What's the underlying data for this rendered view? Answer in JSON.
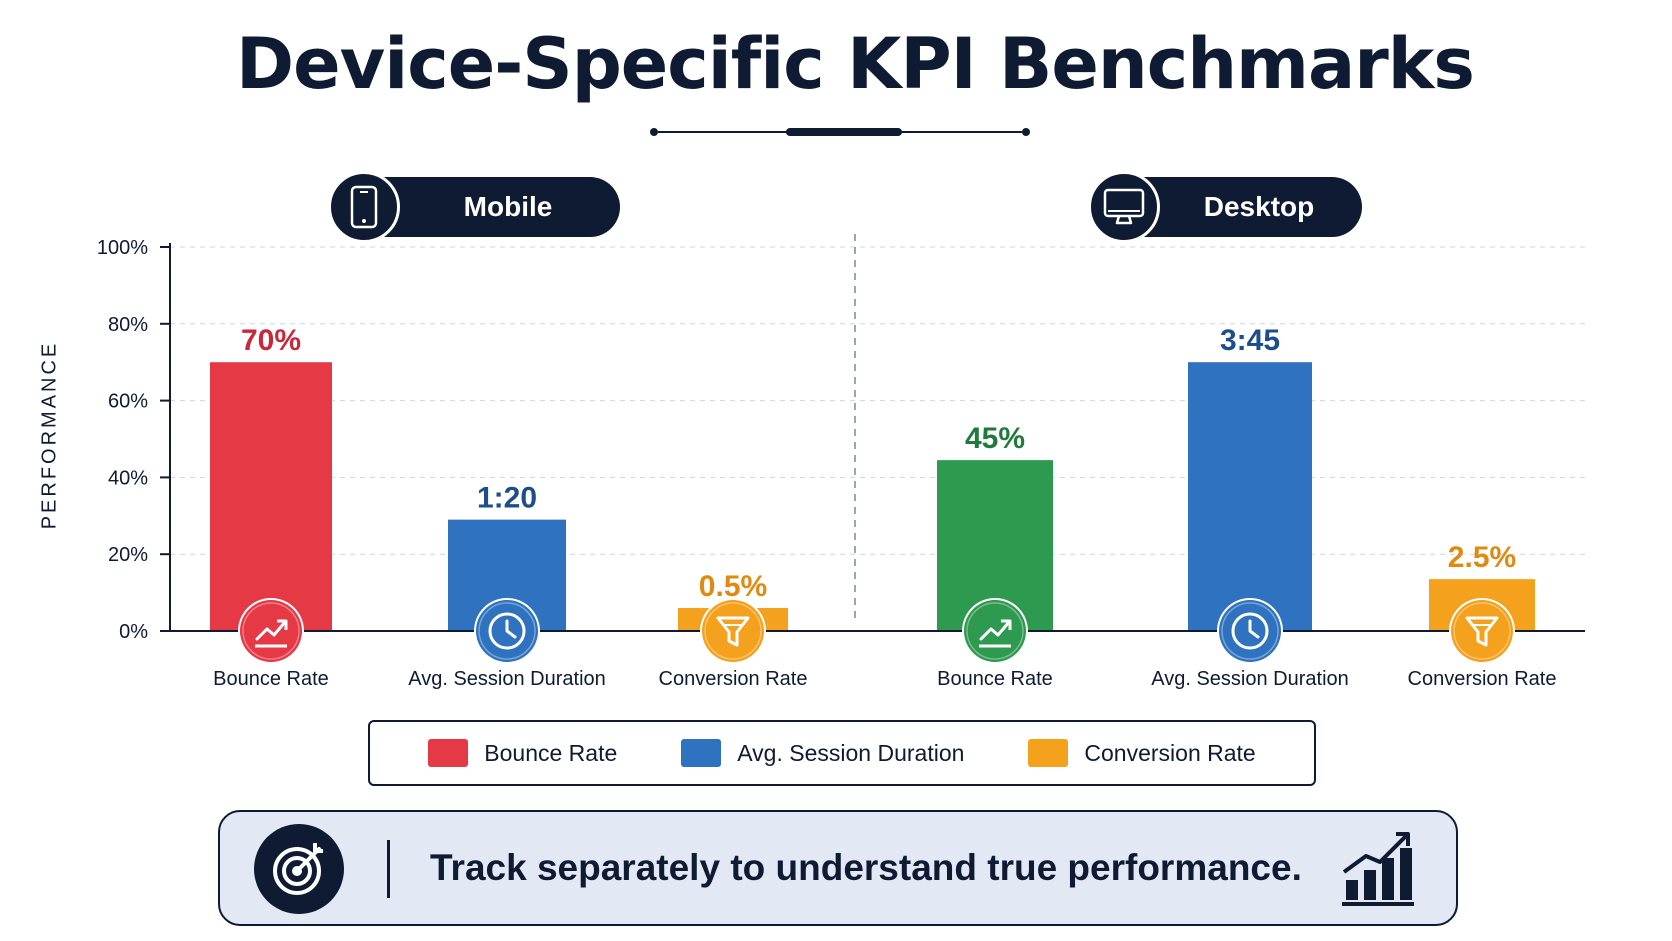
{
  "title": "Device-Specific KPI Benchmarks",
  "groups": {
    "mobile": {
      "label": "Mobile",
      "icon": "smartphone-icon"
    },
    "desktop": {
      "label": "Desktop",
      "icon": "monitor-icon"
    }
  },
  "chart_data": {
    "type": "bar",
    "ylabel": "PERFORMANCE",
    "ylim": [
      0,
      100
    ],
    "yticks": [
      "0%",
      "20%",
      "40%",
      "60%",
      "80%",
      "100%"
    ],
    "grid": true,
    "legend_position": "bottom",
    "panels": [
      {
        "name": "Mobile",
        "bars": [
          {
            "category": "Bounce Rate",
            "value": 70,
            "label": "70%",
            "color": "#e63946",
            "icon": "trend-up-icon"
          },
          {
            "category": "Avg. Session Duration",
            "value": 29,
            "label": "1:20",
            "color": "#2f73c0",
            "icon": "clock-icon"
          },
          {
            "category": "Conversion Rate",
            "value": 6,
            "label": "0.5%",
            "color": "#f4a21d",
            "icon": "funnel-icon"
          }
        ]
      },
      {
        "name": "Desktop",
        "bars": [
          {
            "category": "Bounce Rate",
            "value": 44.5,
            "label": "45%",
            "color": "#2e9a4f",
            "icon": "trend-up-icon"
          },
          {
            "category": "Avg. Session Duration",
            "value": 70,
            "label": "3:45",
            "color": "#2f73c0",
            "icon": "clock-icon"
          },
          {
            "category": "Conversion Rate",
            "value": 13.5,
            "label": "2.5%",
            "color": "#f4a21d",
            "icon": "funnel-icon"
          }
        ]
      }
    ],
    "label_colors": {
      "Mobile.Bounce Rate": "#c9283a",
      "Desktop.Bounce Rate": "#1f7a3c",
      "Avg. Session Duration": "#1d4e8c",
      "Conversion Rate": "#e08a12"
    }
  },
  "legend": [
    {
      "label": "Bounce Rate",
      "color": "#e63946"
    },
    {
      "label": "Avg. Session Duration",
      "color": "#2f73c0"
    },
    {
      "label": "Conversion Rate",
      "color": "#f4a21d"
    }
  ],
  "banner": {
    "text": "Track separately to understand true performance.",
    "icon_left": "target-icon",
    "icon_right": "growth-chart-icon"
  }
}
